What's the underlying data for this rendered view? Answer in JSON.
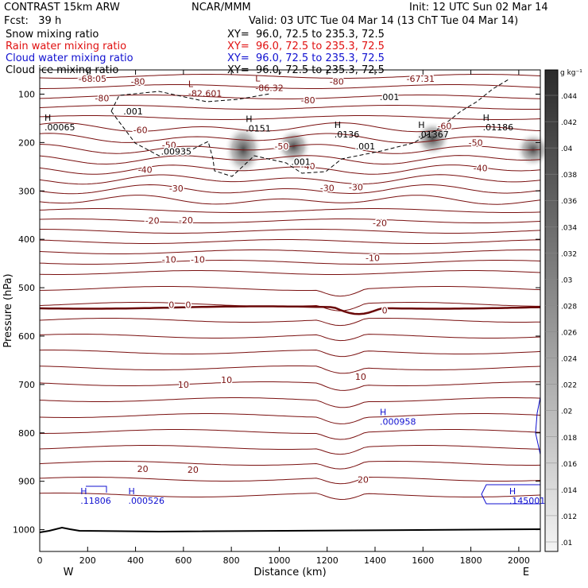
{
  "header": {
    "model": "CONTRAST 15km ARW",
    "center": "NCAR/MMM",
    "init": "Init: 12 UTC Sun 02 Mar 14",
    "fcst": "Fcst:   39 h",
    "valid": "Valid: 03 UTC Tue 04 Mar 14 (13 ChT Tue 04 Mar 14)",
    "fields": [
      {
        "label": "Snow mixing ratio",
        "xy": "XY=  96.0, 72.5 to 235.3, 72.5",
        "color": "#000000"
      },
      {
        "label": "Rain water mixing ratio",
        "xy": "XY=  96.0, 72.5 to 235.3, 72.5",
        "color": "#e01010"
      },
      {
        "label": "Cloud water mixing ratio",
        "xy": "XY=  96.0, 72.5 to 235.3, 72.5",
        "color": "#1010d0"
      },
      {
        "label": "Cloud ice mixing ratio",
        "xy": "XY=  96.0, 72.5 to 235.3, 72.5",
        "color": "#000000"
      }
    ]
  },
  "chart_data": {
    "type": "contour",
    "xlabel": "Distance (km)",
    "ylabel": "Pressure (hPa)",
    "x_ticks": [
      0,
      200,
      400,
      600,
      800,
      1000,
      1200,
      1400,
      1600,
      1800,
      2000
    ],
    "y_ticks": [
      100,
      200,
      300,
      400,
      500,
      600,
      700,
      800,
      900,
      1000
    ],
    "xlim": [
      0,
      2090
    ],
    "ylim": [
      50,
      1045
    ],
    "end_labels": {
      "left": "W",
      "right": "E"
    },
    "colorbar": {
      "unit": "g kg⁻¹",
      "ticks": [
        ".044",
        ".042",
        ".04",
        ".038",
        ".036",
        ".034",
        ".032",
        ".03",
        ".028",
        ".026",
        ".024",
        ".022",
        ".02",
        ".018",
        ".016",
        ".014",
        ".012",
        ".01"
      ]
    },
    "temperature_contours": {
      "color": "#7a1010",
      "labels": [
        {
          "text": "-68.05",
          "x": 220,
          "p": 68
        },
        {
          "text": "-80",
          "x": 410,
          "p": 74
        },
        {
          "text": "-80",
          "x": 1240,
          "p": 74
        },
        {
          "text": "-67.31",
          "x": 1590,
          "p": 68
        },
        {
          "text": "-80",
          "x": 260,
          "p": 108
        },
        {
          "text": "-80",
          "x": 1120,
          "p": 112
        },
        {
          "text": "-60",
          "x": 420,
          "p": 174
        },
        {
          "text": "-60",
          "x": 1690,
          "p": 166
        },
        {
          "text": "-50",
          "x": 540,
          "p": 205
        },
        {
          "text": "-50",
          "x": 1010,
          "p": 208
        },
        {
          "text": "-50",
          "x": 1820,
          "p": 200
        },
        {
          "text": "-40",
          "x": 440,
          "p": 256
        },
        {
          "text": "-40",
          "x": 1120,
          "p": 249
        },
        {
          "text": "-40",
          "x": 1840,
          "p": 253
        },
        {
          "text": "-30",
          "x": 570,
          "p": 295
        },
        {
          "text": "-30",
          "x": 1200,
          "p": 294
        },
        {
          "text": "-30",
          "x": 1320,
          "p": 292
        },
        {
          "text": "-20",
          "x": 470,
          "p": 361
        },
        {
          "text": "-20",
          "x": 610,
          "p": 360
        },
        {
          "text": "-20",
          "x": 1420,
          "p": 366
        },
        {
          "text": "-10",
          "x": 540,
          "p": 442
        },
        {
          "text": "-10",
          "x": 660,
          "p": 442
        },
        {
          "text": "-10",
          "x": 1390,
          "p": 438
        },
        {
          "text": "0",
          "x": 550,
          "p": 535
        },
        {
          "text": "0",
          "x": 620,
          "p": 535
        },
        {
          "text": "0",
          "x": 1440,
          "p": 547
        },
        {
          "text": "10",
          "x": 600,
          "p": 700
        },
        {
          "text": "10",
          "x": 780,
          "p": 690
        },
        {
          "text": "10",
          "x": 1340,
          "p": 684
        },
        {
          "text": "20",
          "x": 430,
          "p": 874
        },
        {
          "text": "20",
          "x": 640,
          "p": 876
        },
        {
          "text": "20",
          "x": 1350,
          "p": 896
        }
      ]
    },
    "extrema": [
      {
        "kind": "L",
        "value": "-82.601",
        "x": 620,
        "p": 95,
        "color": "#7a1010"
      },
      {
        "kind": "L",
        "value": "-86.32",
        "x": 900,
        "p": 84,
        "color": "#7a1010"
      },
      {
        "kind": "H",
        "value": ".00065",
        "x": 20,
        "p": 165,
        "color": "#000000"
      },
      {
        "kind": "H",
        "value": ".0151",
        "x": 860,
        "p": 167,
        "color": "#000000"
      },
      {
        "kind": "H",
        "value": ".0136",
        "x": 1230,
        "p": 180,
        "color": "#000000"
      },
      {
        "kind": "H",
        "value": ".01367",
        "x": 1580,
        "p": 180,
        "color": "#000000"
      },
      {
        "kind": "H",
        "value": ".01186",
        "x": 1850,
        "p": 165,
        "color": "#000000"
      },
      {
        "kind": "H",
        "value": ".000958",
        "x": 1420,
        "p": 773,
        "color": "#1010d0"
      },
      {
        "kind": "H",
        "value": ".11806",
        "x": 170,
        "p": 937,
        "color": "#1010d0"
      },
      {
        "kind": "H",
        "value": ".000526",
        "x": 370,
        "p": 937,
        "color": "#1010d0"
      },
      {
        "kind": "H",
        "value": ".145001",
        "x": 1960,
        "p": 937,
        "color": "#1010d0"
      }
    ],
    "cloud_ice_labels": [
      {
        "text": ".001",
        "x": 390,
        "p": 135
      },
      {
        "text": ".001",
        "x": 1460,
        "p": 106
      },
      {
        "text": ".00935",
        "x": 570,
        "p": 218
      },
      {
        "text": ".001",
        "x": 1360,
        "p": 208
      },
      {
        "text": ".001",
        "x": 1090,
        "p": 240
      }
    ],
    "shaded_cells": [
      {
        "x": 850,
        "p": 215,
        "value": 0.0151
      },
      {
        "x": 1060,
        "p": 208,
        "value": 0.0136
      },
      {
        "x": 1640,
        "p": 192,
        "value": 0.01367
      },
      {
        "x": 2060,
        "p": 215,
        "value": 0.01186
      }
    ]
  }
}
